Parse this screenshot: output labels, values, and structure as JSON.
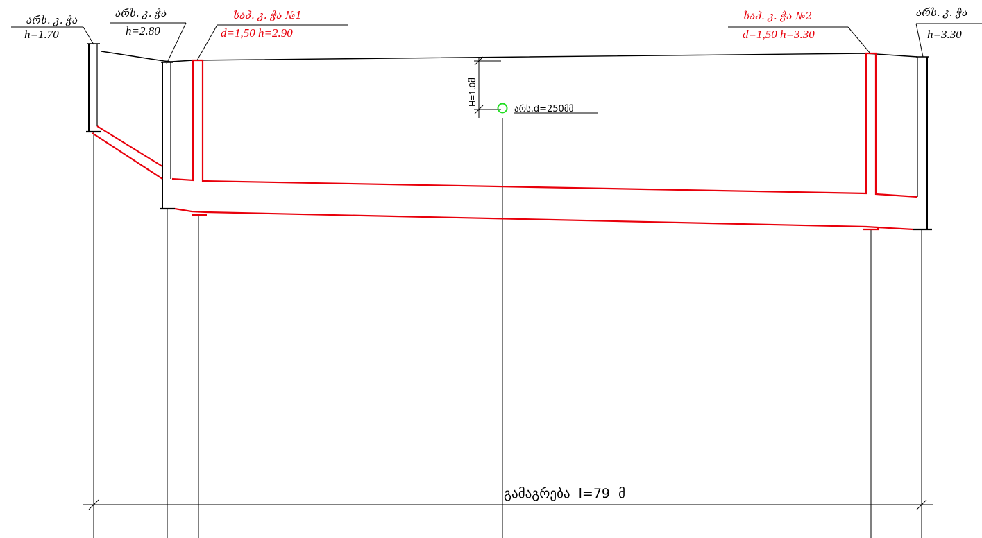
{
  "colors": {
    "existing": "#000000",
    "proposed": "#e8000b",
    "marker": "#22dd22",
    "background": "#ffffff"
  },
  "wells": [
    {
      "id": "existing-1",
      "kind": "existing",
      "title": "არს. კ. ჭა",
      "subtitle": "h=1.70"
    },
    {
      "id": "existing-2",
      "kind": "existing",
      "title": "არს. კ. ჭა",
      "subtitle": "h=2.80"
    },
    {
      "id": "proposed-1",
      "kind": "proposed",
      "title": "საპ. კ. ჭა №1",
      "subtitle": "d=1,50 h=2.90"
    },
    {
      "id": "proposed-2",
      "kind": "proposed",
      "title": "საპ. კ. ჭა №2",
      "subtitle": "d=1,50 h=3.30"
    },
    {
      "id": "existing-3",
      "kind": "existing",
      "title": "არს. კ. ჭა",
      "subtitle": "h=3.30"
    }
  ],
  "depth_dimension": {
    "text": "H=1.0მ"
  },
  "existing_pipe": {
    "text": "არს.d=250მმ",
    "icon": "circle-marker-icon"
  },
  "total_length": {
    "text": "გამაგრება  l=79  მ"
  }
}
